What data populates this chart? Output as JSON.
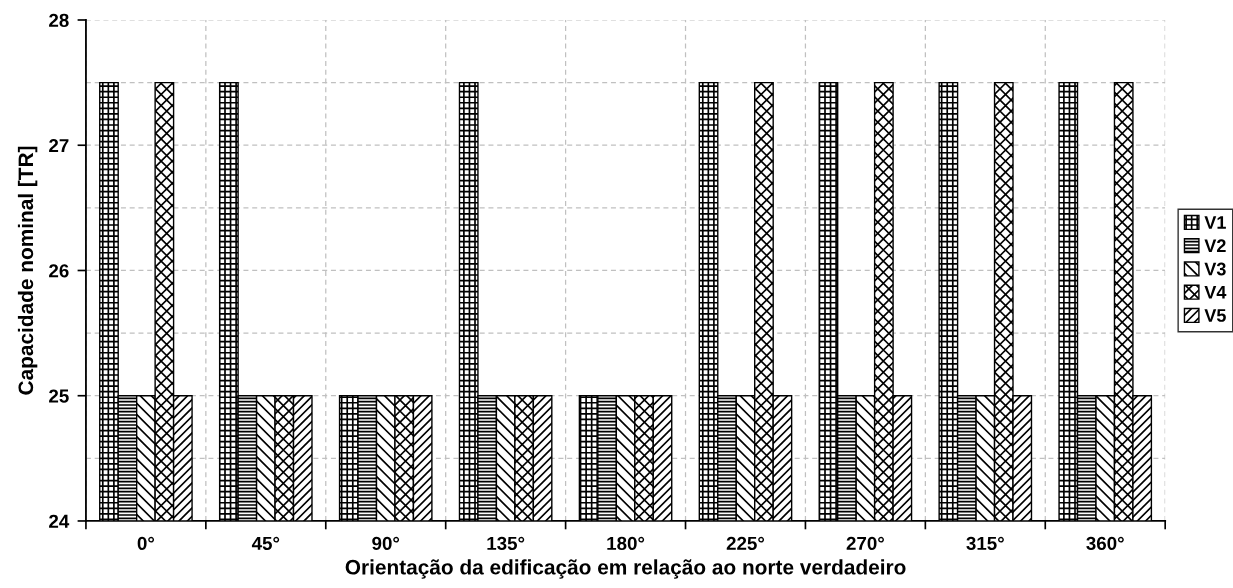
{
  "chart_data": {
    "type": "bar",
    "xlabel": "Orientação da edificação em relação ao norte verdadeiro",
    "ylabel": "Capacidade nominal [TR]",
    "categories": [
      "0°",
      "45°",
      "90°",
      "135°",
      "180°",
      "225°",
      "270°",
      "315°",
      "360°"
    ],
    "series": [
      {
        "name": "V1",
        "color": "#000000",
        "values": [
          27.5,
          27.5,
          25,
          27.5,
          25,
          27.5,
          27.5,
          27.5,
          27.5
        ]
      },
      {
        "name": "V2",
        "color": "#000000",
        "values": [
          25,
          25,
          25,
          25,
          25,
          25,
          25,
          25,
          25
        ]
      },
      {
        "name": "V3",
        "color": "#000000",
        "values": [
          25,
          25,
          25,
          25,
          25,
          25,
          25,
          25,
          25
        ]
      },
      {
        "name": "V4",
        "color": "#000000",
        "values": [
          27.5,
          25,
          25,
          25,
          25,
          27.5,
          27.5,
          27.5,
          27.5
        ]
      },
      {
        "name": "V5",
        "color": "#000000",
        "values": [
          25,
          25,
          25,
          25,
          25,
          25,
          25,
          25,
          25
        ]
      }
    ],
    "ylim": [
      24,
      28
    ],
    "yticks": [
      24,
      {
        "value": 24.5,
        "label": null
      },
      25,
      {
        "value": 25.5,
        "label": null
      },
      26,
      {
        "value": 26.5,
        "label": null
      },
      27,
      {
        "value": 27.5,
        "label": null
      },
      28
    ],
    "grid": true,
    "legend": "right"
  }
}
